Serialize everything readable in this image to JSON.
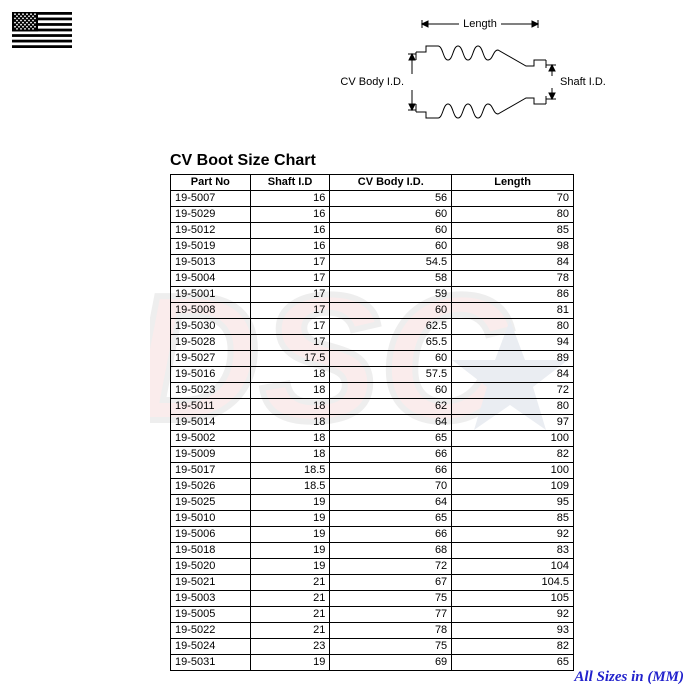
{
  "flag": {
    "name": "us-flag"
  },
  "diagram": {
    "labels": {
      "length": "Length",
      "cv_body": "CV Body I.D.",
      "shaft": "Shaft I.D."
    },
    "stroke_color": "#000000",
    "font_size": 11
  },
  "watermark": {
    "text": "DSC",
    "primary_color": "#c61a1a",
    "outline_color": "#333333",
    "star_color": "#0a2a6b"
  },
  "title": "CV Boot Size Chart",
  "table": {
    "columns": [
      "Part No",
      "Shaft I.D",
      "CV Body I.D.",
      "Length"
    ],
    "col_align": [
      "left",
      "right",
      "right",
      "right"
    ],
    "rows": [
      [
        "19-5007",
        "16",
        "56",
        "70"
      ],
      [
        "19-5029",
        "16",
        "60",
        "80"
      ],
      [
        "19-5012",
        "16",
        "60",
        "85"
      ],
      [
        "19-5019",
        "16",
        "60",
        "98"
      ],
      [
        "19-5013",
        "17",
        "54.5",
        "84"
      ],
      [
        "19-5004",
        "17",
        "58",
        "78"
      ],
      [
        "19-5001",
        "17",
        "59",
        "86"
      ],
      [
        "19-5008",
        "17",
        "60",
        "81"
      ],
      [
        "19-5030",
        "17",
        "62.5",
        "80"
      ],
      [
        "19-5028",
        "17",
        "65.5",
        "94"
      ],
      [
        "19-5027",
        "17.5",
        "60",
        "89"
      ],
      [
        "19-5016",
        "18",
        "57.5",
        "84"
      ],
      [
        "19-5023",
        "18",
        "60",
        "72"
      ],
      [
        "19-5011",
        "18",
        "62",
        "80"
      ],
      [
        "19-5014",
        "18",
        "64",
        "97"
      ],
      [
        "19-5002",
        "18",
        "65",
        "100"
      ],
      [
        "19-5009",
        "18",
        "66",
        "82"
      ],
      [
        "19-5017",
        "18.5",
        "66",
        "100"
      ],
      [
        "19-5026",
        "18.5",
        "70",
        "109"
      ],
      [
        "19-5025",
        "19",
        "64",
        "95"
      ],
      [
        "19-5010",
        "19",
        "65",
        "85"
      ],
      [
        "19-5006",
        "19",
        "66",
        "92"
      ],
      [
        "19-5018",
        "19",
        "68",
        "83"
      ],
      [
        "19-5020",
        "19",
        "72",
        "104"
      ],
      [
        "19-5021",
        "21",
        "67",
        "104.5"
      ],
      [
        "19-5003",
        "21",
        "75",
        "105"
      ],
      [
        "19-5005",
        "21",
        "77",
        "92"
      ],
      [
        "19-5022",
        "21",
        "78",
        "93"
      ],
      [
        "19-5024",
        "23",
        "75",
        "82"
      ],
      [
        "19-5031",
        "19",
        "69",
        "65"
      ]
    ],
    "border_color": "#000000",
    "font_size": 11,
    "header_font_weight": "bold"
  },
  "footer": {
    "text": "All Sizes in (MM)",
    "color": "#2222cc",
    "font_style": "italic",
    "font_size": 15
  }
}
